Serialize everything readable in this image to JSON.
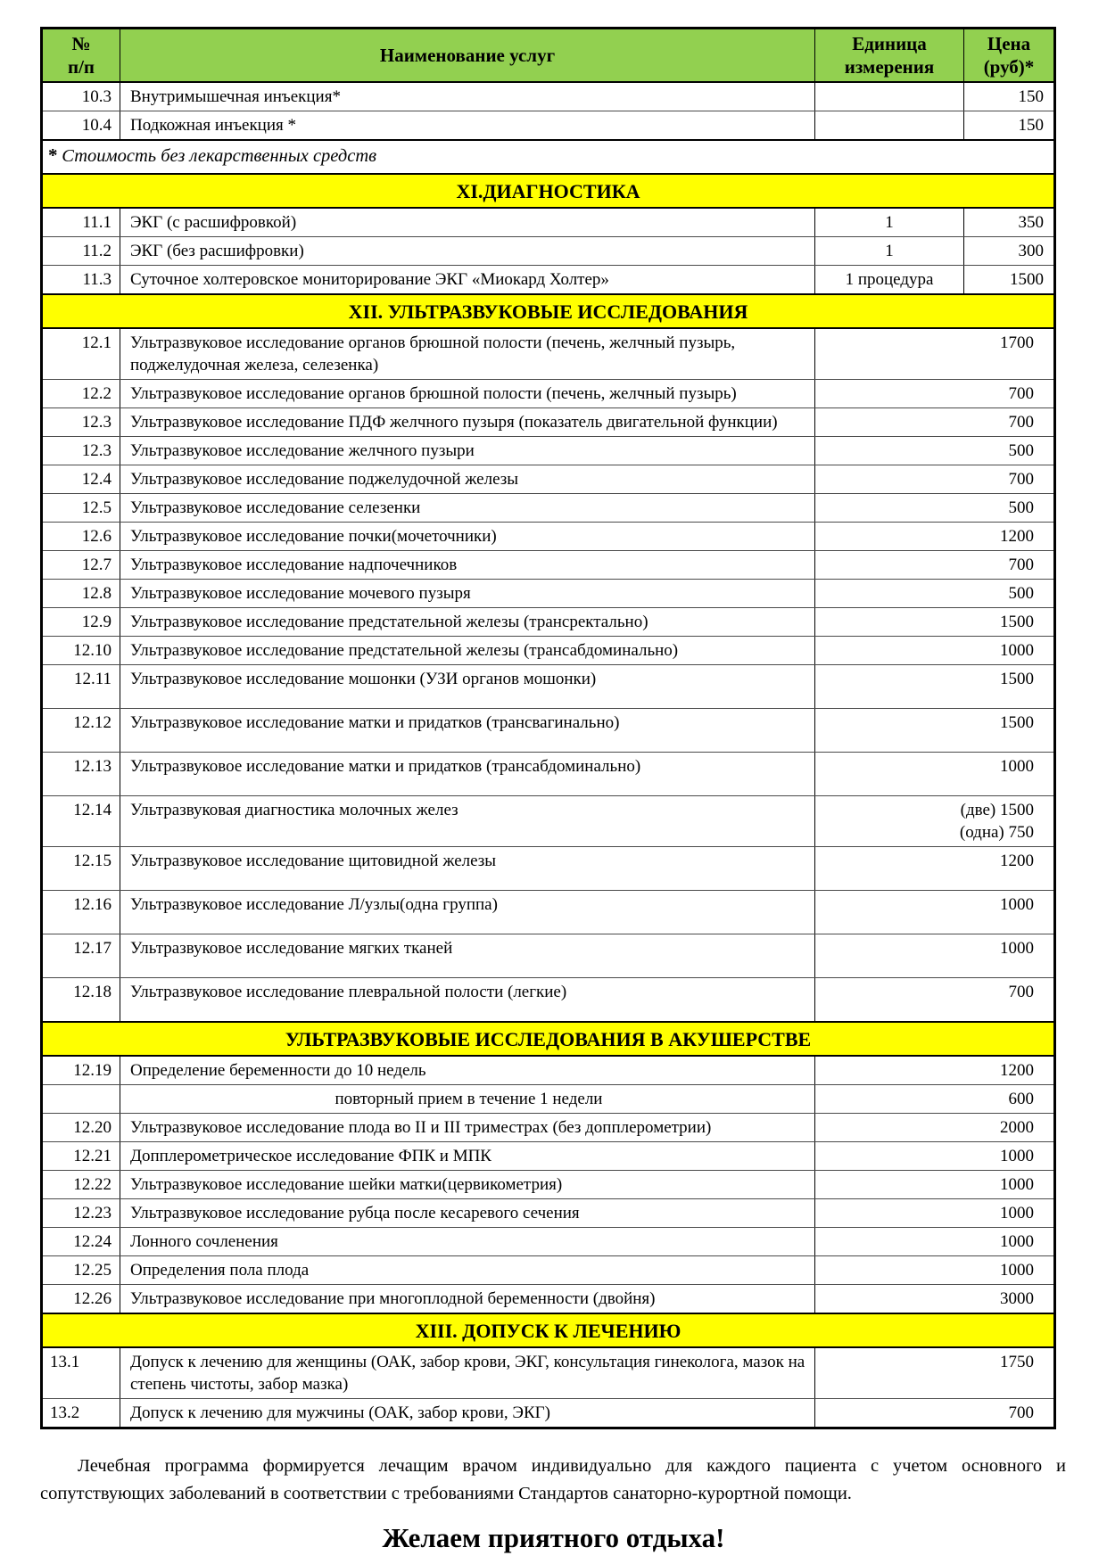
{
  "table": {
    "header": {
      "col_num": "№\nп/п",
      "col_name": "Наименование услуг",
      "col_unit": "Единица\nизмерения",
      "col_price": "Цена\n(руб)*"
    },
    "colors": {
      "header_bg": "#92d050",
      "section_bg": "#ffff00"
    },
    "rows": [
      {
        "type": "item",
        "num": "10.3",
        "name": "Внутримышечная инъекция*",
        "unit": "",
        "price": "150"
      },
      {
        "type": "item",
        "num": "10.4",
        "name": "Подкожная инъекция *",
        "unit": "",
        "price": "150"
      },
      {
        "type": "note",
        "star": "*",
        "text": "Стоимость без лекарственных средств"
      },
      {
        "type": "section",
        "text": "XI.ДИАГНОСТИКА"
      },
      {
        "type": "item",
        "num": "11.1",
        "name": "ЭКГ (с расшифровкой)",
        "unit": "1",
        "price": "350"
      },
      {
        "type": "item",
        "num": "11.2",
        "name": "ЭКГ (без расшифровки)",
        "unit": "1",
        "price": "300"
      },
      {
        "type": "item",
        "num": "11.3",
        "name": "Суточное холтеровское мониторирование ЭКГ «Миокард Холтер»",
        "unit": "1 процедура",
        "price": "1500"
      },
      {
        "type": "section",
        "text": "XII. УЛЬТРАЗВУКОВЫЕ ИССЛЕДОВАНИЯ"
      },
      {
        "type": "item2",
        "num": "12.1",
        "name": "Ультразвуковое исследование органов брюшной полости (печень, желчный пузырь, поджелудочная железа, селезенка)",
        "price": "1700"
      },
      {
        "type": "item2",
        "num": "12.2",
        "name": "Ультразвуковое исследование органов брюшной полости (печень, желчный пузырь)",
        "price": "700"
      },
      {
        "type": "item2",
        "num": "12.3",
        "name": "Ультразвуковое исследование ПДФ желчного пузыря (показатель двигательной функции)",
        "price": "700"
      },
      {
        "type": "item2",
        "num": "12.3",
        "name": "Ультразвуковое исследование желчного пузыри",
        "price": "500"
      },
      {
        "type": "item2",
        "num": "12.4",
        "name": "Ультразвуковое исследование поджелудочной железы",
        "price": "700"
      },
      {
        "type": "item2",
        "num": "12.5",
        "name": "Ультразвуковое исследование селезенки",
        "price": "500"
      },
      {
        "type": "item2",
        "num": "12.6",
        "name": "Ультразвуковое исследование почки(мочеточники)",
        "price": "1200"
      },
      {
        "type": "item2",
        "num": "12.7",
        "name": "Ультразвуковое исследование надпочечников",
        "price": "700"
      },
      {
        "type": "item2",
        "num": "12.8",
        "name": "Ультразвуковое исследование мочевого пузыря",
        "price": "500"
      },
      {
        "type": "item2",
        "num": "12.9",
        "name": "Ультразвуковое исследование предстательной железы (трансректально)",
        "price": "1500"
      },
      {
        "type": "item2",
        "num": "12.10",
        "name": "Ультразвуковое исследование предстательной железы (трансабдоминально)",
        "price": "1000"
      },
      {
        "type": "item2",
        "num": "12.11",
        "name": "Ультразвуковое   исследование   мошонки (УЗИ органов мошонки)",
        "price": "1500",
        "tall": true
      },
      {
        "type": "item2",
        "num": "12.12",
        "name": "Ультразвуковое исследование матки и придатков (трансвагинально)",
        "price": "1500",
        "tall": true
      },
      {
        "type": "item2",
        "num": "12.13",
        "name": "Ультразвуковое исследование матки и придатков (трансабдоминально)",
        "price": "1000",
        "tall": true
      },
      {
        "type": "item2",
        "num": "12.14",
        "name": "Ультразвуковая  диагностика молочных желез",
        "price": "(две) 1500\n(одна)  750"
      },
      {
        "type": "item2",
        "num": "12.15",
        "name": "Ультразвуковое исследование щитовидной железы",
        "price": "1200",
        "tall": true
      },
      {
        "type": "item2",
        "num": "12.16",
        "name": "Ультразвуковое исследование Л/узлы(одна группа)",
        "price": "1000",
        "tall": true
      },
      {
        "type": "item2",
        "num": "12.17",
        "name": "Ультразвуковое исследование мягких тканей",
        "price": "1000",
        "tall": true
      },
      {
        "type": "item2",
        "num": "12.18",
        "name": "Ультразвуковое исследование плевральной полости (легкие)",
        "price": "700",
        "tall": true
      },
      {
        "type": "section",
        "text": "УЛЬТРАЗВУКОВЫЕ ИССЛЕДОВАНИЯ В АКУШЕРСТВЕ",
        "notch": true
      },
      {
        "type": "item2",
        "num": "12.19",
        "name": "Определение беременности до 10 недель",
        "price": "1200"
      },
      {
        "type": "item2",
        "num": "",
        "name": "повторный прием в течение 1 недели",
        "price": "600",
        "name_align": "center"
      },
      {
        "type": "item2",
        "num": "12.20",
        "name": "Ультразвуковое исследование плода во II и III триместрах (без допплерометрии)",
        "price": "2000"
      },
      {
        "type": "item2",
        "num": "12.21",
        "name": "Допплерометрическое исследование ФПК  и МПК",
        "price": "1000"
      },
      {
        "type": "item2",
        "num": "12.22",
        "name": "Ультразвуковое исследование шейки матки(цервикометрия)",
        "price": "1000"
      },
      {
        "type": "item2",
        "num": "12.23",
        "name": "Ультразвуковое исследование рубца после кесаревого сечения",
        "price": "1000"
      },
      {
        "type": "item2",
        "num": "12.24",
        "name": " Лонного сочленения",
        "price": "1000"
      },
      {
        "type": "item2",
        "num": "12.25",
        "name": "Определения пола плода",
        "price": "1000"
      },
      {
        "type": "item2",
        "num": "12.26",
        "name": "Ультразвуковое исследование при многоплодной беременности (двойня)",
        "price": "3000"
      },
      {
        "type": "section",
        "text": "XIII. ДОПУСК К ЛЕЧЕНИЮ"
      },
      {
        "type": "item2",
        "num": "13.1",
        "name": "Допуск к лечению для женщины (ОАК, забор крови, ЭКГ, консультация гинеколога, мазок на степень чистоты, забор мазка)",
        "price": "1750",
        "num_align": "left"
      },
      {
        "type": "item2",
        "num": "13.2",
        "name": "Допуск к лечению для мужчины (ОАК, забор крови, ЭКГ)",
        "price": "700",
        "num_align": "left"
      }
    ]
  },
  "footer": {
    "note": "Лечебная программа формируется лечащим врачом индивидуально для каждого пациента с учетом основного и сопутствующих заболеваний в соответствии с требованиями Стандартов санаторно-курортной помощи.",
    "wish": "Желаем приятного отдыха!"
  }
}
